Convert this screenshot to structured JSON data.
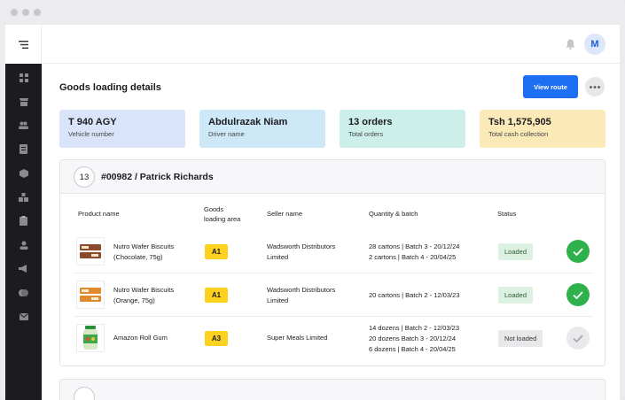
{
  "user": {
    "avatar_initial": "M"
  },
  "page": {
    "title": "Goods loading details",
    "view_route_label": "View route"
  },
  "summary_cards": [
    {
      "value": "T 940 AGY",
      "label": "Vehicle number",
      "color": "#d9e4fb"
    },
    {
      "value": "Abdulrazak Niam",
      "label": "Driver name",
      "color": "#cde8f7"
    },
    {
      "value": "13 orders",
      "label": "Total orders",
      "color": "#cdefea"
    },
    {
      "value": "Tsh 1,575,905",
      "label": "Total cash collection",
      "color": "#fbeab8"
    }
  ],
  "order": {
    "count": "13",
    "title": "#00982 / Patrick Richards",
    "columns": {
      "product": "Product name",
      "area_line1": "Goods",
      "area_line2": "loading area",
      "seller": "Seller name",
      "qty": "Quantity & batch",
      "status": "Status"
    },
    "rows": [
      {
        "product_line1": "Nutro Wafer Biscuits",
        "product_line2": "(Chocolate, 75g)",
        "area": "A1",
        "seller_line1": "Wadsworth Distributors",
        "seller_line2": "Limited",
        "qty": [
          "28 cartons | Batch 3 - 20/12/24",
          "2 cartons | Batch 4 - 20/04/25"
        ],
        "status": "Loaded",
        "checked": true
      },
      {
        "product_line1": "Nutro Wafer Biscuits",
        "product_line2": "(Orange, 75g)",
        "area": "A1",
        "seller_line1": "Wadsworth Distributors",
        "seller_line2": "Limited",
        "qty": [
          "20 cartons | Batch 2 - 12/03/23"
        ],
        "status": "Loaded",
        "checked": true
      },
      {
        "product_line1": "Amazon Roll Gum",
        "product_line2": "",
        "area": "A3",
        "seller_line1": "Super Meals Limited",
        "seller_line2": "",
        "qty": [
          "14 dozens | Batch 2 - 12/03/23",
          "20 dozens  Batch 3 - 20/12/24",
          "6 dozens | Batch 4 - 20/04/25"
        ],
        "status": "Not loaded",
        "checked": false
      }
    ]
  },
  "icons": {
    "menu": "menu-icon",
    "bell": "bell-icon",
    "more": "more-horizontal-icon",
    "check": "check-icon"
  }
}
